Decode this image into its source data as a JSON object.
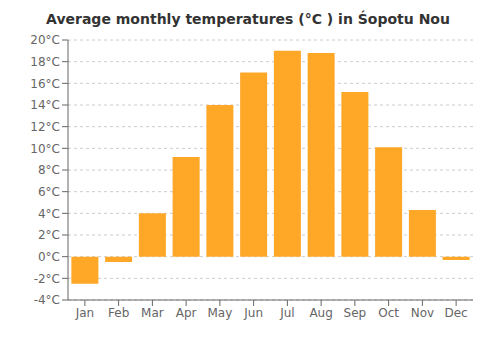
{
  "chart_data": {
    "type": "bar",
    "title": "Average monthly temperatures (°C ) in Śopotu Nou",
    "categories": [
      "Jan",
      "Feb",
      "Mar",
      "Apr",
      "May",
      "Jun",
      "Jul",
      "Aug",
      "Sep",
      "Oct",
      "Nov",
      "Dec"
    ],
    "values": [
      -2.5,
      -0.5,
      4.0,
      9.2,
      14.0,
      17.0,
      19.0,
      18.8,
      15.2,
      10.1,
      4.3,
      -0.3
    ],
    "color": "#FFA726",
    "ylim": [
      -4,
      20
    ],
    "yticks": [
      {
        "value": -4,
        "label": "-4°C"
      },
      {
        "value": -2,
        "label": "-2°C"
      },
      {
        "value": 0,
        "label": "0°C"
      },
      {
        "value": 2,
        "label": "2°C"
      },
      {
        "value": 4,
        "label": "4°C"
      },
      {
        "value": 6,
        "label": "6°C"
      },
      {
        "value": 8,
        "label": "8°C"
      },
      {
        "value": 10,
        "label": "10°C"
      },
      {
        "value": 12,
        "label": "12°C"
      },
      {
        "value": 14,
        "label": "14°C"
      },
      {
        "value": 16,
        "label": "16°C"
      },
      {
        "value": 18,
        "label": "18°C"
      },
      {
        "value": 20,
        "label": "20°C"
      }
    ],
    "grid": true
  }
}
